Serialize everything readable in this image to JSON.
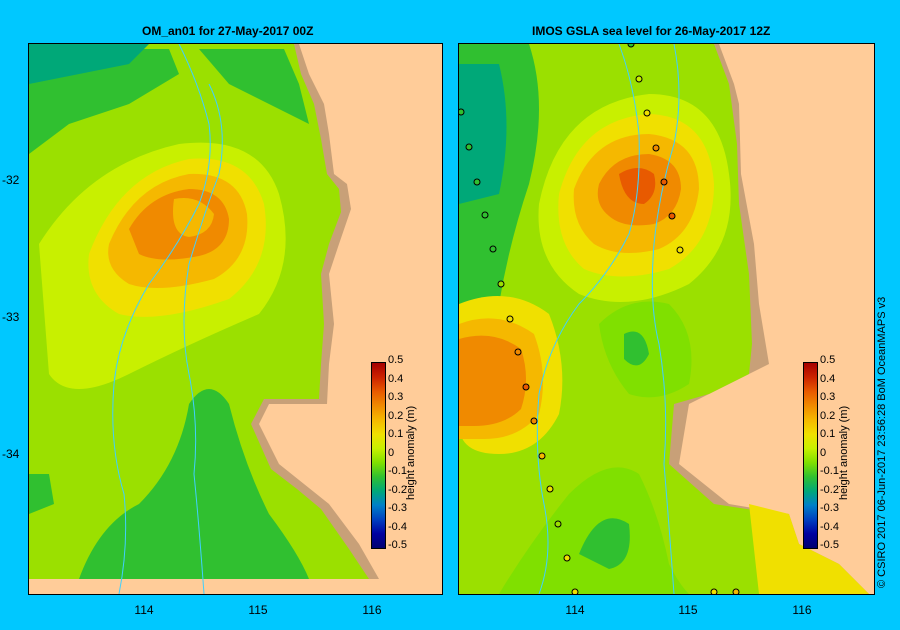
{
  "left_panel": {
    "title": "OM_an01  for 27-May-2017 00Z"
  },
  "right_panel": {
    "title": "IMOS  GSLA sea level   for 26-May-2017 12Z"
  },
  "latitude_ticks": [
    "-32",
    "-33",
    "-34"
  ],
  "longitude_ticks": [
    "114",
    "115",
    "116"
  ],
  "colorbar": {
    "title": "height anomaly (m)",
    "labels": [
      "0.5",
      "0.4",
      "0.3",
      "0.2",
      "0.1",
      "0",
      "-0.1",
      "-0.2",
      "-0.3",
      "-0.4",
      "-0.5"
    ],
    "colors": [
      "#a50000",
      "#cc2200",
      "#e85a00",
      "#f08a00",
      "#f5b800",
      "#f0e000",
      "#c8f000",
      "#80e000",
      "#30c030",
      "#00a878",
      "#0080c8",
      "#0040c0",
      "#0000a0",
      "#000070"
    ]
  },
  "credit": "© CSIRO 2017   06-Jun-2017 23:56:28 BoM OceanMAPS v3",
  "colors": {
    "land": "#ffcc99",
    "coast": "#c8a078",
    "river_lines": "#40d0ff",
    "background": "#00c8ff"
  }
}
